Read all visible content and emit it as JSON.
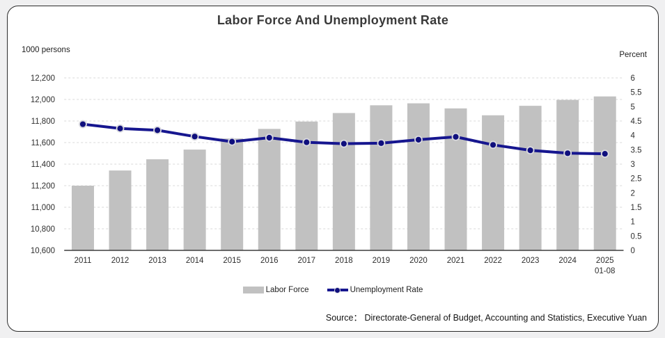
{
  "page": {
    "background_color": "#f0f0f1",
    "card_background": "#ffffff",
    "card_border_color": "#2b2b2b"
  },
  "header": {
    "title": "Labor Force And Unemployment Rate"
  },
  "axes": {
    "left_unit": "1000 persons",
    "right_unit": "Percent",
    "left_tick_labels": [
      "12,200",
      "12,000",
      "11,800",
      "11,600",
      "11,400",
      "11,200",
      "11,000",
      "10,800",
      "10,600"
    ],
    "right_tick_labels": [
      "6",
      "5.5",
      "5",
      "4.5",
      "4",
      "3.5",
      "3",
      "2.5",
      "2",
      "1.5",
      "1",
      "0.5",
      "0"
    ]
  },
  "legend": {
    "items": [
      {
        "label": "Labor Force",
        "swatch": "gray-bar-swatch"
      },
      {
        "label": "Unemployment Rate",
        "swatch": "navy-line-dot-swatch"
      }
    ]
  },
  "source_note": "Source： Directorate-General of Budget, Accounting and Statistics, Executive Yuan",
  "chart_data": {
    "type": "bar",
    "subtype": "combo-bar-line-dual-axis",
    "title": "Labor Force And Unemployment Rate",
    "categories": [
      "2011",
      "2012",
      "2013",
      "2014",
      "2015",
      "2016",
      "2017",
      "2018",
      "2019",
      "2020",
      "2021",
      "2022",
      "2023",
      "2024",
      "2025 01-08"
    ],
    "series": [
      {
        "name": "Labor Force",
        "type": "bar",
        "axis": "left",
        "unit": "1000 persons",
        "color": "#c1c1c1",
        "values": [
          11200,
          11341,
          11445,
          11535,
          11638,
          11727,
          11795,
          11874,
          11946,
          11964,
          11917,
          11853,
          11941,
          11996,
          12028
        ]
      },
      {
        "name": "Unemployment Rate",
        "type": "line",
        "axis": "right",
        "unit": "Percent",
        "color": "#16168f",
        "marker_color": "#0f0f7d",
        "marker_ring_color": "#d8d8de",
        "values": [
          4.39,
          4.24,
          4.18,
          3.96,
          3.78,
          3.92,
          3.76,
          3.71,
          3.73,
          3.85,
          3.95,
          3.67,
          3.48,
          3.38,
          3.36
        ]
      }
    ],
    "left_axis": {
      "label": "1000 persons",
      "min": 10600,
      "max": 12200,
      "step": 200
    },
    "right_axis": {
      "label": "Percent",
      "min": 0,
      "max": 6,
      "step": 0.5
    },
    "grid": {
      "horizontal": true,
      "style": "dashed",
      "color": "#d9d9d9",
      "axis_line_color": "#3f3f3f"
    },
    "legend_position": "bottom"
  }
}
